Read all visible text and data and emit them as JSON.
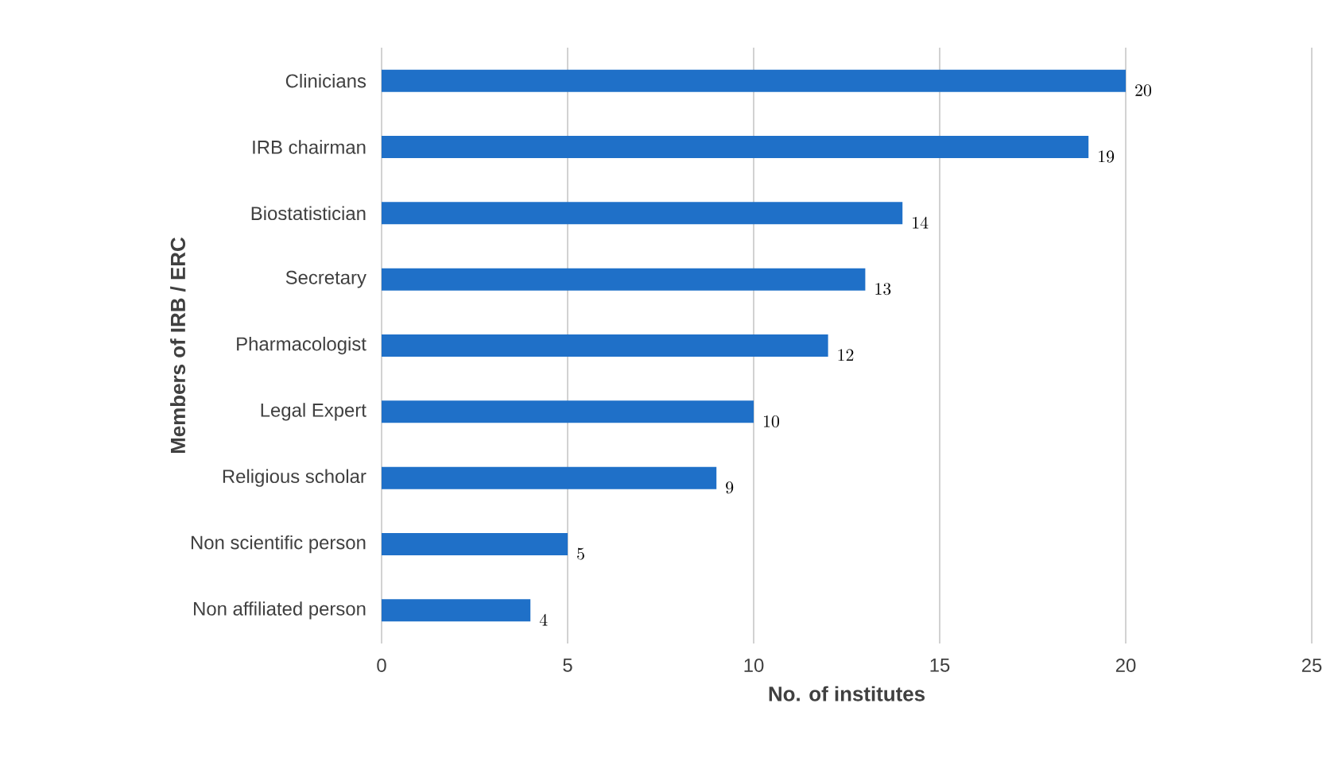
{
  "chart_data": {
    "type": "bar",
    "orientation": "horizontal",
    "xlabel": "No. of institutes",
    "ylabel": "Members of IRB / ERC",
    "categories": [
      "Clinicians",
      "IRB chairman",
      "Biostatistician",
      "Secretary",
      "Pharmacologist",
      "Legal Expert",
      "Religious scholar",
      "Non scientific person",
      "Non affiliated person"
    ],
    "values": [
      20,
      19,
      14,
      13,
      12,
      10,
      9,
      5,
      4
    ],
    "color": "#1f70c8",
    "xlim": [
      0,
      25
    ],
    "xticks": [
      0,
      5,
      10,
      15,
      20,
      25
    ],
    "grid": "x",
    "data_labels": true
  }
}
